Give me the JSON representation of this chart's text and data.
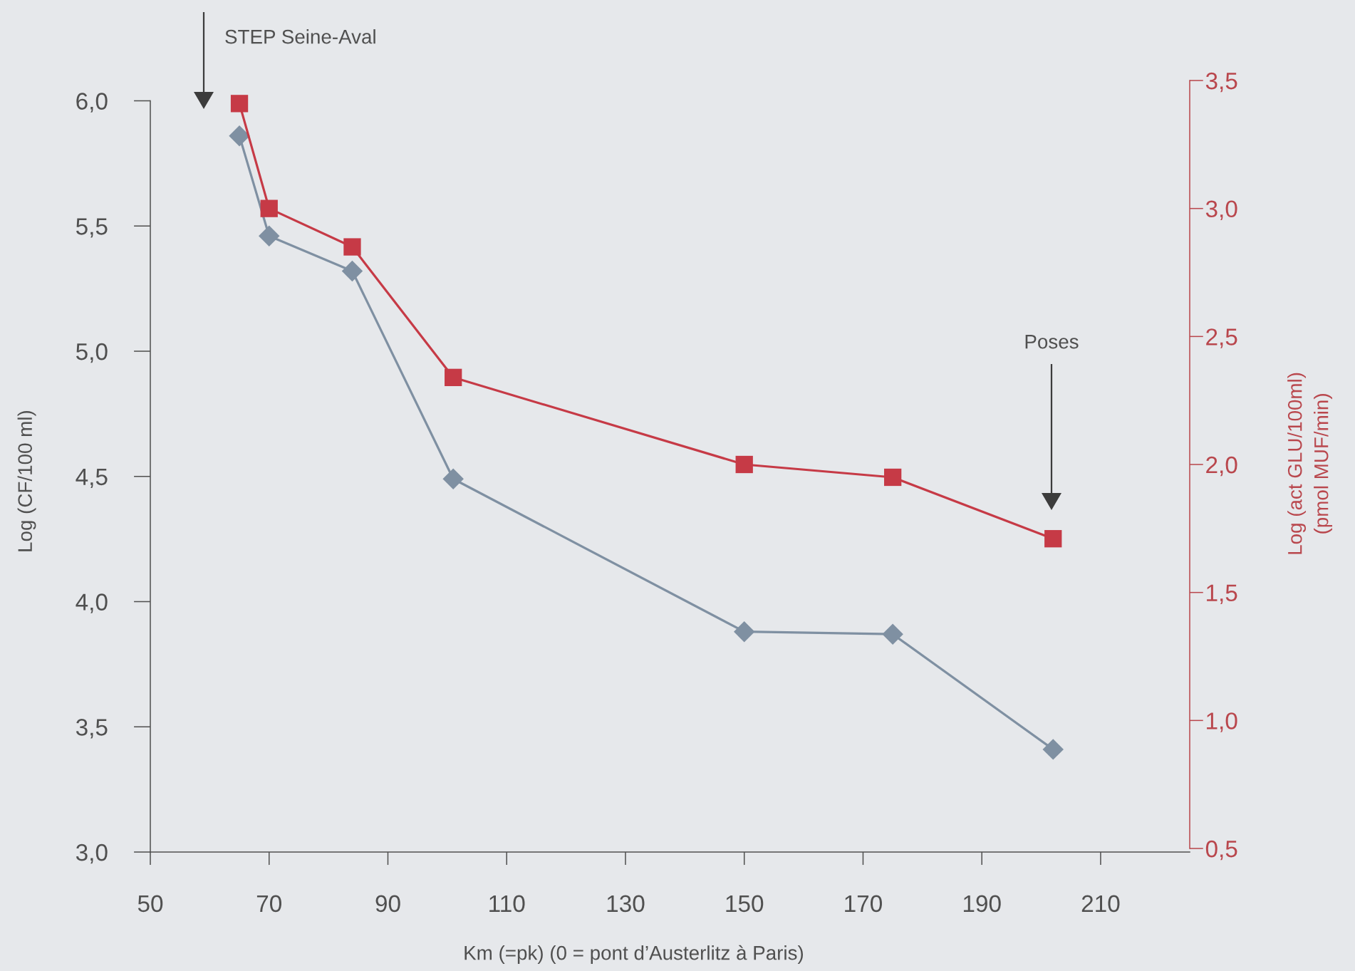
{
  "chart_data": {
    "type": "line",
    "xlabel": "Km (=pk) (0 = pont d’Austerlitz à Paris)",
    "ylabel": "Log (CF/100 ml)",
    "y2label": "Log (act GLU/100ml)\n(pmol MUF/min)",
    "x": [
      65,
      70,
      84,
      101,
      150,
      175,
      202
    ],
    "series": [
      {
        "color": "#7f90a2",
        "marker": "diamond",
        "values": [
          5.86,
          5.46,
          5.32,
          4.49,
          3.88,
          3.87,
          3.41
        ]
      },
      {
        "color": "#c63a46",
        "marker": "square",
        "axis": "y2",
        "values": [
          3.41,
          3.0,
          2.85,
          2.34,
          2.0,
          1.95,
          1.71
        ]
      }
    ],
    "xlim": [
      50,
      225
    ],
    "xticks": [
      50,
      70,
      90,
      110,
      130,
      150,
      170,
      190,
      210
    ],
    "ylim": [
      3.0,
      6.0
    ],
    "yticks": [
      {
        "value": 3.0,
        "label": "3,0"
      },
      {
        "value": 3.5,
        "label": "3,5"
      },
      {
        "value": 4.0,
        "label": "4,0"
      },
      {
        "value": 4.5,
        "label": "4,5"
      },
      {
        "value": 5.0,
        "label": "5,0"
      },
      {
        "value": 5.5,
        "label": "5,5"
      },
      {
        "value": 6.0,
        "label": "6,0"
      }
    ],
    "y2lim": [
      0.5,
      3.5
    ],
    "y2ticks": [
      {
        "value": 0.5,
        "label": "0,5"
      },
      {
        "value": 1.0,
        "label": "1,0"
      },
      {
        "value": 1.5,
        "label": "1,5"
      },
      {
        "value": 2.0,
        "label": "2,0"
      },
      {
        "value": 2.5,
        "label": "2,5"
      },
      {
        "value": 3.0,
        "label": "3,0"
      },
      {
        "value": 3.5,
        "label": "3,5"
      }
    ],
    "annotations": [
      "STEP Seine-Aval",
      "Poses"
    ]
  }
}
